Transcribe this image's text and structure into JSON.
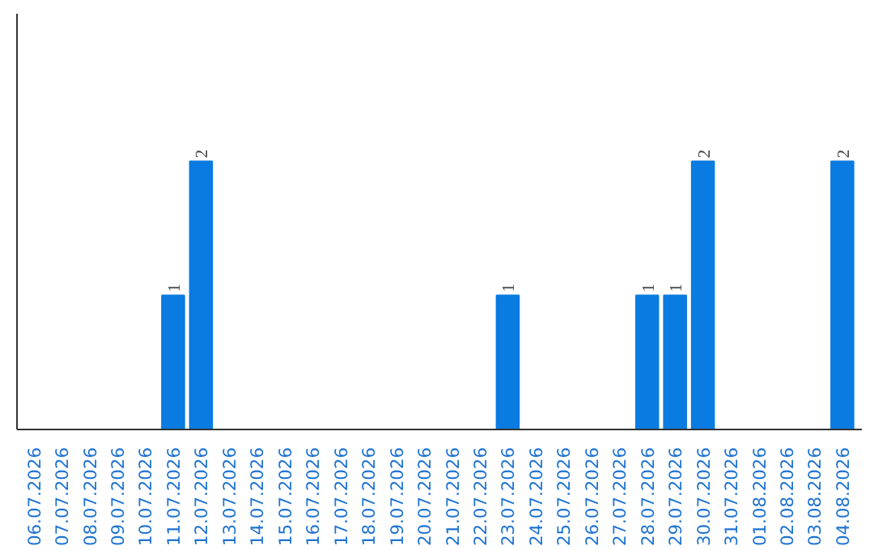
{
  "chart_data": {
    "type": "bar",
    "categories": [
      "06.07.2026",
      "07.07.2026",
      "08.07.2026",
      "09.07.2026",
      "10.07.2026",
      "11.07.2026",
      "12.07.2026",
      "13.07.2026",
      "14.07.2026",
      "15.07.2026",
      "16.07.2026",
      "17.07.2026",
      "18.07.2026",
      "19.07.2026",
      "20.07.2026",
      "21.07.2026",
      "22.07.2026",
      "23.07.2026",
      "24.07.2026",
      "25.07.2026",
      "26.07.2026",
      "27.07.2026",
      "28.07.2026",
      "29.07.2026",
      "30.07.2026",
      "31.07.2026",
      "01.08.2026",
      "02.08.2026",
      "03.08.2026",
      "04.08.2026"
    ],
    "values": [
      0,
      0,
      0,
      0,
      0,
      1,
      2,
      0,
      0,
      0,
      0,
      0,
      0,
      0,
      0,
      0,
      0,
      1,
      0,
      0,
      0,
      0,
      1,
      1,
      2,
      0,
      0,
      0,
      0,
      2
    ],
    "value_labels": [
      null,
      null,
      null,
      null,
      null,
      "1",
      "2",
      null,
      null,
      null,
      null,
      null,
      null,
      null,
      null,
      null,
      null,
      "1",
      null,
      null,
      null,
      null,
      "1",
      "1",
      "2",
      null,
      null,
      null,
      null,
      "2"
    ],
    "color": "#0a7be0",
    "ylim": [
      0,
      3.1
    ],
    "tick_labels": "x",
    "grid": false
  }
}
